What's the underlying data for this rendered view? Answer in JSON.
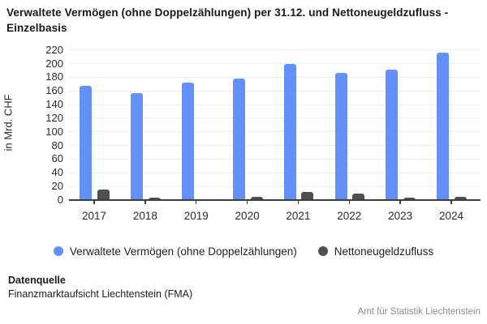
{
  "title": "Verwaltete Vermögen (ohne Doppelzählungen) per 31.12. und Nettoneugeldzufluss - Einzelbasis",
  "chart_data": {
    "type": "bar",
    "categories": [
      "2017",
      "2018",
      "2019",
      "2020",
      "2021",
      "2022",
      "2023",
      "2024"
    ],
    "series": [
      {
        "name": "Verwaltete Vermögen (ohne Doppelzählungen)",
        "color": "#6490fb",
        "values": [
          168,
          157,
          172,
          178,
          199,
          186,
          191,
          216
        ]
      },
      {
        "name": "Nettoneugeldzufluss",
        "color": "#4e5053",
        "values": [
          16,
          3,
          0,
          5,
          12,
          9,
          4,
          5
        ]
      }
    ],
    "title": "Verwaltete Vermögen (ohne Doppelzählungen) per 31.12. und Nettoneugeldzufluss - Einzelbasis",
    "xlabel": "",
    "ylabel": "in Mrd. CHF",
    "ylim": [
      0,
      220
    ],
    "ytick_step": 20,
    "grid": true,
    "legend_position": "bottom"
  },
  "colors": {
    "axis": "#3d3d3d",
    "grid": "#ededed",
    "bar_aum": "#6490fb",
    "bar_nnm": "#4e5053",
    "muted_text": "#8c8c8c"
  },
  "footer": {
    "source_label": "Datenquelle",
    "source_value": "Finanzmarktaufsicht Liechtenstein (FMA)",
    "credit": "Amt für Statistik Liechtenstein"
  }
}
